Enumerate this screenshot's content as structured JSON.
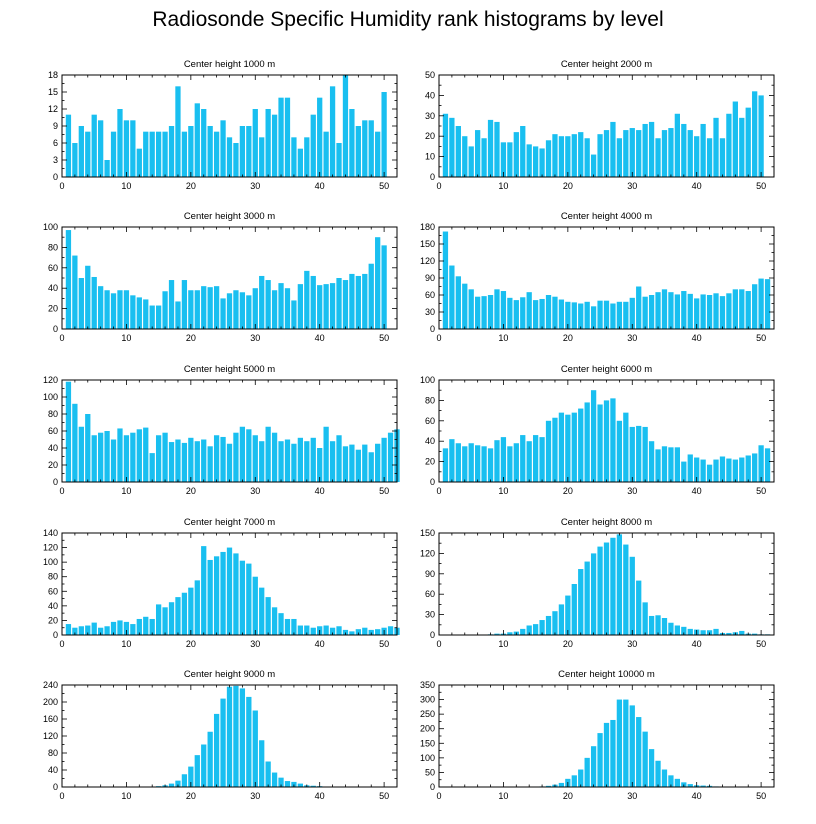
{
  "title": "Radiosonde Specific Humidity rank histograms by level",
  "bar_color": "#19bff0",
  "chart_data": [
    {
      "type": "bar",
      "title": "Center height 1000 m",
      "xlim": [
        0,
        52
      ],
      "xticks": [
        0,
        10,
        20,
        30,
        40,
        50
      ],
      "ylim": [
        0,
        18
      ],
      "yticks": [
        0,
        3,
        6,
        9,
        12,
        15,
        18
      ],
      "values": [
        11,
        6,
        9,
        8,
        11,
        10,
        3,
        8,
        12,
        10,
        10,
        5,
        8,
        8,
        8,
        8,
        9,
        16,
        8,
        9,
        13,
        12,
        9,
        8,
        10,
        7,
        6,
        9,
        9,
        12,
        7,
        12,
        11,
        14,
        14,
        7,
        5,
        7,
        11,
        14,
        8,
        16,
        6,
        18,
        12,
        9,
        10,
        10,
        8,
        15,
        0
      ]
    },
    {
      "type": "bar",
      "title": "Center height 2000 m",
      "xlim": [
        0,
        52
      ],
      "xticks": [
        0,
        10,
        20,
        30,
        40,
        50
      ],
      "ylim": [
        0,
        50
      ],
      "yticks": [
        0,
        10,
        20,
        30,
        40,
        50
      ],
      "values": [
        31,
        29,
        25,
        20,
        15,
        23,
        19,
        28,
        27,
        17,
        17,
        22,
        25,
        16,
        15,
        14,
        18,
        21,
        20,
        20,
        21,
        22,
        19,
        11,
        21,
        23,
        27,
        19,
        23,
        24,
        23,
        26,
        27,
        19,
        23,
        24,
        31,
        26,
        23,
        20,
        26,
        19,
        29,
        19,
        31,
        37,
        29,
        34,
        42,
        40,
        0
      ]
    },
    {
      "type": "bar",
      "title": "Center height 3000 m",
      "xlim": [
        0,
        52
      ],
      "xticks": [
        0,
        10,
        20,
        30,
        40,
        50
      ],
      "ylim": [
        0,
        100
      ],
      "yticks": [
        0,
        20,
        40,
        60,
        80,
        100
      ],
      "values": [
        97,
        72,
        50,
        62,
        51,
        42,
        38,
        35,
        38,
        38,
        33,
        31,
        29,
        23,
        23,
        37,
        48,
        27,
        48,
        38,
        38,
        42,
        41,
        42,
        30,
        35,
        38,
        36,
        33,
        40,
        52,
        48,
        38,
        45,
        40,
        28,
        44,
        57,
        52,
        43,
        44,
        45,
        50,
        48,
        54,
        52,
        54,
        64,
        90,
        82,
        0
      ]
    },
    {
      "type": "bar",
      "title": "Center height 4000 m",
      "xlim": [
        0,
        52
      ],
      "xticks": [
        0,
        10,
        20,
        30,
        40,
        50
      ],
      "ylim": [
        0,
        180
      ],
      "yticks": [
        0,
        30,
        60,
        90,
        120,
        150,
        180
      ],
      "values": [
        172,
        112,
        93,
        80,
        70,
        57,
        58,
        60,
        70,
        67,
        55,
        51,
        56,
        65,
        51,
        53,
        60,
        57,
        52,
        48,
        47,
        45,
        48,
        40,
        50,
        50,
        45,
        48,
        48,
        55,
        75,
        57,
        60,
        65,
        70,
        65,
        61,
        67,
        62,
        54,
        61,
        60,
        63,
        58,
        63,
        70,
        70,
        67,
        79,
        89,
        88
      ]
    },
    {
      "type": "bar",
      "title": "Center height 5000 m",
      "xlim": [
        0,
        52
      ],
      "xticks": [
        0,
        10,
        20,
        30,
        40,
        50
      ],
      "ylim": [
        0,
        120
      ],
      "yticks": [
        0,
        20,
        40,
        60,
        80,
        100,
        120
      ],
      "values": [
        118,
        92,
        65,
        80,
        55,
        58,
        60,
        50,
        63,
        55,
        58,
        62,
        64,
        34,
        55,
        58,
        47,
        50,
        46,
        52,
        48,
        50,
        42,
        55,
        53,
        45,
        58,
        65,
        62,
        55,
        48,
        65,
        58,
        48,
        50,
        45,
        52,
        48,
        52,
        40,
        65,
        48,
        55,
        42,
        44,
        38,
        44,
        35,
        45,
        52,
        58,
        62
      ]
    },
    {
      "type": "bar",
      "title": "Center height 6000 m",
      "xlim": [
        0,
        52
      ],
      "xticks": [
        0,
        10,
        20,
        30,
        40,
        50
      ],
      "ylim": [
        0,
        100
      ],
      "yticks": [
        0,
        20,
        40,
        60,
        80,
        100
      ],
      "values": [
        33,
        42,
        38,
        35,
        38,
        36,
        35,
        33,
        41,
        44,
        35,
        38,
        46,
        40,
        46,
        44,
        60,
        63,
        68,
        66,
        68,
        72,
        78,
        90,
        76,
        80,
        82,
        60,
        68,
        54,
        55,
        54,
        40,
        32,
        35,
        34,
        34,
        20,
        27,
        24,
        22,
        17,
        22,
        25,
        23,
        22,
        24,
        26,
        28,
        36,
        33
      ]
    },
    {
      "type": "bar",
      "title": "Center height 7000 m",
      "xlim": [
        0,
        52
      ],
      "xticks": [
        0,
        10,
        20,
        30,
        40,
        50
      ],
      "ylim": [
        0,
        140
      ],
      "yticks": [
        0,
        20,
        40,
        60,
        80,
        100,
        120,
        140
      ],
      "values": [
        15,
        10,
        12,
        13,
        17,
        10,
        12,
        18,
        20,
        18,
        15,
        22,
        25,
        22,
        42,
        38,
        45,
        52,
        58,
        65,
        75,
        122,
        103,
        108,
        114,
        120,
        112,
        102,
        98,
        80,
        65,
        52,
        38,
        30,
        22,
        22,
        13,
        13,
        10,
        12,
        13,
        10,
        12,
        7,
        5,
        8,
        10,
        7,
        8,
        10,
        12,
        10
      ]
    },
    {
      "type": "bar",
      "title": "Center height 8000 m",
      "xlim": [
        0,
        52
      ],
      "xticks": [
        0,
        10,
        20,
        30,
        40,
        50
      ],
      "ylim": [
        0,
        150
      ],
      "yticks": [
        0,
        30,
        60,
        90,
        120,
        150
      ],
      "values": [
        0,
        0,
        0,
        0,
        0,
        0,
        0,
        1,
        2,
        2,
        4,
        5,
        9,
        14,
        16,
        22,
        28,
        35,
        45,
        58,
        75,
        97,
        108,
        120,
        130,
        136,
        143,
        148,
        133,
        115,
        80,
        48,
        28,
        29,
        25,
        18,
        14,
        12,
        9,
        8,
        7,
        7,
        9,
        3,
        3,
        4,
        6,
        2,
        2,
        1,
        1,
        0
      ]
    },
    {
      "type": "bar",
      "title": "Center height 9000 m",
      "xlim": [
        0,
        52
      ],
      "xticks": [
        0,
        10,
        20,
        30,
        40,
        50
      ],
      "ylim": [
        0,
        240
      ],
      "yticks": [
        0,
        40,
        80,
        120,
        160,
        200,
        240
      ],
      "values": [
        0,
        0,
        0,
        0,
        0,
        0,
        0,
        0,
        0,
        0,
        0,
        0,
        0,
        1,
        2,
        4,
        8,
        15,
        30,
        48,
        75,
        100,
        130,
        172,
        208,
        236,
        238,
        232,
        212,
        180,
        110,
        60,
        34,
        22,
        14,
        12,
        8,
        4,
        3,
        2,
        1,
        1,
        0,
        0,
        0,
        0,
        0,
        0,
        0,
        0,
        0,
        0
      ]
    },
    {
      "type": "bar",
      "title": "Center height 10000 m",
      "xlim": [
        0,
        52
      ],
      "xticks": [
        0,
        10,
        20,
        30,
        40,
        50
      ],
      "ylim": [
        0,
        350
      ],
      "yticks": [
        0,
        50,
        100,
        150,
        200,
        250,
        300,
        350
      ],
      "values": [
        0,
        0,
        0,
        0,
        0,
        0,
        0,
        0,
        0,
        0,
        0,
        0,
        0,
        0,
        0,
        2,
        4,
        8,
        14,
        28,
        40,
        60,
        100,
        140,
        185,
        220,
        230,
        300,
        300,
        280,
        240,
        190,
        130,
        90,
        60,
        40,
        28,
        16,
        10,
        6,
        5,
        4,
        2,
        1,
        0,
        0,
        0,
        0,
        0,
        0,
        0,
        0
      ]
    }
  ]
}
